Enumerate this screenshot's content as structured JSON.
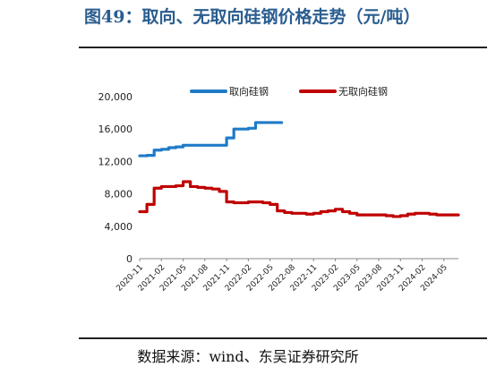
{
  "figure_title": "图49：取向、无取向硅钢价格走势（元/吨）",
  "source_note": "数据来源：wind、东吴证券研究所",
  "chart_data": {
    "type": "line",
    "ylim": [
      0,
      20000
    ],
    "yticks": [
      0,
      4000,
      8000,
      12000,
      16000,
      20000
    ],
    "ytick_labels": [
      "0",
      "4,000",
      "8,000",
      "12,000",
      "16,000",
      "20,000"
    ],
    "xticks": [
      "2020-11",
      "2021-02",
      "2021-05",
      "2021-08",
      "2021-11",
      "2022-02",
      "2022-05",
      "2022-08",
      "2022-11",
      "2023-02",
      "2023-05",
      "2023-08",
      "2023-11",
      "2024-02",
      "2024-05"
    ],
    "legend_position": "top",
    "grid": false,
    "series": [
      {
        "name": "取向硅钢",
        "color": "#1f7bc8",
        "points": [
          [
            "2020-11",
            12700
          ],
          [
            "2020-12",
            12750
          ],
          [
            "2021-01",
            13400
          ],
          [
            "2021-02",
            13500
          ],
          [
            "2021-03",
            13700
          ],
          [
            "2021-04",
            13800
          ],
          [
            "2021-05",
            14000
          ],
          [
            "2021-06",
            14000
          ],
          [
            "2021-07",
            14000
          ],
          [
            "2021-08",
            14000
          ],
          [
            "2021-09",
            14000
          ],
          [
            "2021-10",
            14000
          ],
          [
            "2021-11",
            14900
          ],
          [
            "2021-12",
            16000
          ],
          [
            "2022-01",
            16000
          ],
          [
            "2022-02",
            16100
          ],
          [
            "2022-03",
            16800
          ],
          [
            "2022-04",
            16800
          ],
          [
            "2022-05",
            16800
          ],
          [
            "2022-06",
            16800
          ]
        ]
      },
      {
        "name": "无取向硅钢",
        "color": "#c00000",
        "points": [
          [
            "2020-11",
            5800
          ],
          [
            "2020-12",
            6700
          ],
          [
            "2021-01",
            8700
          ],
          [
            "2021-02",
            8900
          ],
          [
            "2021-03",
            8900
          ],
          [
            "2021-04",
            9000
          ],
          [
            "2021-05",
            9500
          ],
          [
            "2021-06",
            8900
          ],
          [
            "2021-07",
            8800
          ],
          [
            "2021-08",
            8700
          ],
          [
            "2021-09",
            8600
          ],
          [
            "2021-10",
            8300
          ],
          [
            "2021-11",
            7000
          ],
          [
            "2021-12",
            6900
          ],
          [
            "2022-01",
            6900
          ],
          [
            "2022-02",
            7000
          ],
          [
            "2022-03",
            7000
          ],
          [
            "2022-04",
            6900
          ],
          [
            "2022-05",
            6700
          ],
          [
            "2022-06",
            5900
          ],
          [
            "2022-07",
            5700
          ],
          [
            "2022-08",
            5600
          ],
          [
            "2022-09",
            5600
          ],
          [
            "2022-10",
            5500
          ],
          [
            "2022-11",
            5600
          ],
          [
            "2022-12",
            5800
          ],
          [
            "2023-01",
            5900
          ],
          [
            "2023-02",
            6100
          ],
          [
            "2023-03",
            5800
          ],
          [
            "2023-04",
            5600
          ],
          [
            "2023-05",
            5400
          ],
          [
            "2023-06",
            5400
          ],
          [
            "2023-07",
            5400
          ],
          [
            "2023-08",
            5400
          ],
          [
            "2023-09",
            5300
          ],
          [
            "2023-10",
            5200
          ],
          [
            "2023-11",
            5300
          ],
          [
            "2023-12",
            5500
          ],
          [
            "2024-01",
            5600
          ],
          [
            "2024-02",
            5600
          ],
          [
            "2024-03",
            5500
          ],
          [
            "2024-04",
            5400
          ],
          [
            "2024-05",
            5400
          ],
          [
            "2024-06",
            5400
          ],
          [
            "2024-07",
            5400
          ]
        ]
      }
    ]
  }
}
